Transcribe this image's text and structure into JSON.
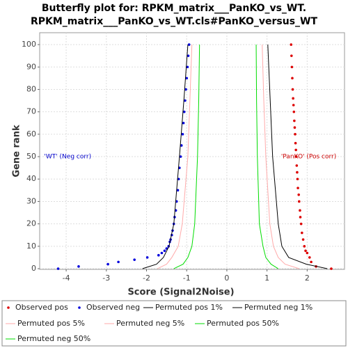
{
  "chart_data": {
    "type": "scatter",
    "title": [
      "Butterfly plot for: RPKM_matrix___PanKO_vs_WT.",
      "RPKM_matrix___PanKO_vs_WT.cls#PanKO_versus_WT"
    ],
    "x_label": "Score (Signal2Noise)",
    "y_label": "Gene rank",
    "xlim": [
      -4.66,
      2.93
    ],
    "ylim": [
      -0.3,
      105.3
    ],
    "xticks": [
      -4,
      -3,
      -2,
      -1,
      0,
      1,
      2
    ],
    "yticks": [
      0,
      10,
      20,
      30,
      40,
      50,
      60,
      70,
      80,
      90,
      100
    ],
    "grid": true,
    "legend": "bottom",
    "annotations": [
      {
        "text": "'WT' (Neg corr)",
        "color": "#0000cc",
        "x": -4.55,
        "y": 50
      },
      {
        "text": "'PanKO' (Pos corr)",
        "color": "#cc0000",
        "x": 1.35,
        "y": 50
      }
    ],
    "series": [
      {
        "name": "Observed pos",
        "color": "#dd0000",
        "mode": "markers",
        "x": [
          2.6,
          2.22,
          2.1,
          2.06,
          2.0,
          1.96,
          1.93,
          1.9,
          1.87,
          1.85,
          1.83,
          1.82,
          1.8,
          1.79,
          1.77,
          1.76,
          1.75,
          1.74,
          1.73,
          1.72,
          1.71,
          1.7,
          1.69,
          1.68,
          1.67,
          1.66,
          1.65,
          1.64,
          1.63,
          1.62,
          1.61,
          1.6
        ],
        "y": [
          0,
          1,
          3,
          5,
          7,
          8,
          10,
          13,
          16,
          20,
          23,
          26,
          30,
          33,
          36,
          40,
          43,
          46,
          50,
          53,
          56,
          60,
          63,
          66,
          70,
          73,
          76,
          80,
          85,
          90,
          95,
          100
        ]
      },
      {
        "name": "Observed neg",
        "color": "#0000dd",
        "mode": "markers",
        "x": [
          -4.2,
          -3.69,
          -2.96,
          -2.7,
          -2.3,
          -1.98,
          -1.7,
          -1.62,
          -1.55,
          -1.5,
          -1.45,
          -1.42,
          -1.4,
          -1.37,
          -1.35,
          -1.32,
          -1.3,
          -1.27,
          -1.25,
          -1.22,
          -1.2,
          -1.18,
          -1.15,
          -1.13,
          -1.1,
          -1.08,
          -1.06,
          -1.04,
          -1.02,
          -1.0,
          -0.98,
          -0.96,
          -0.94
        ],
        "y": [
          0,
          1,
          2,
          3,
          4,
          5,
          6,
          7,
          8,
          9,
          10,
          12,
          13,
          15,
          17,
          20,
          23,
          26,
          30,
          35,
          40,
          45,
          50,
          55,
          60,
          65,
          70,
          75,
          80,
          85,
          90,
          95,
          100
        ]
      },
      {
        "name": "Permuted pos 1%",
        "color": "#000000",
        "mode": "lines",
        "x": [
          2.5,
          1.98,
          1.54,
          1.37,
          1.28,
          1.14,
          1.08,
          1.02
        ],
        "y": [
          0,
          2,
          5,
          10,
          20,
          50,
          75,
          100
        ]
      },
      {
        "name": "Permuted neg 1%",
        "color": "#000000",
        "mode": "lines",
        "x": [
          -2.1,
          -1.75,
          -1.58,
          -1.44,
          -1.32,
          -1.18,
          -1.07,
          -0.97
        ],
        "y": [
          0,
          2,
          5,
          10,
          20,
          50,
          75,
          100
        ]
      },
      {
        "name": "Permuted pos 5%",
        "color": "#ffaaaa",
        "mode": "lines",
        "x": [
          1.8,
          1.45,
          1.28,
          1.16,
          1.07,
          0.97,
          0.92,
          0.88
        ],
        "y": [
          0,
          2,
          5,
          10,
          20,
          50,
          75,
          100
        ]
      },
      {
        "name": "Permuted neg 5%",
        "color": "#ffaaaa",
        "mode": "lines",
        "x": [
          -1.73,
          -1.5,
          -1.37,
          -1.21,
          -1.11,
          -0.97,
          -0.92,
          -0.87
        ],
        "y": [
          0,
          2,
          5,
          10,
          20,
          50,
          75,
          100
        ]
      },
      {
        "name": "Permuted pos 50%",
        "color": "#00dd00",
        "mode": "lines",
        "x": [
          1.28,
          1.1,
          0.97,
          0.9,
          0.81,
          0.76,
          0.74,
          0.73
        ],
        "y": [
          0,
          2,
          5,
          10,
          20,
          50,
          75,
          100
        ]
      },
      {
        "name": "Permuted neg 50%",
        "color": "#00dd00",
        "mode": "lines",
        "x": [
          -1.32,
          -1.09,
          -0.97,
          -0.87,
          -0.8,
          -0.73,
          -0.7,
          -0.68
        ],
        "y": [
          0,
          2,
          5,
          10,
          20,
          50,
          75,
          100
        ]
      }
    ]
  }
}
